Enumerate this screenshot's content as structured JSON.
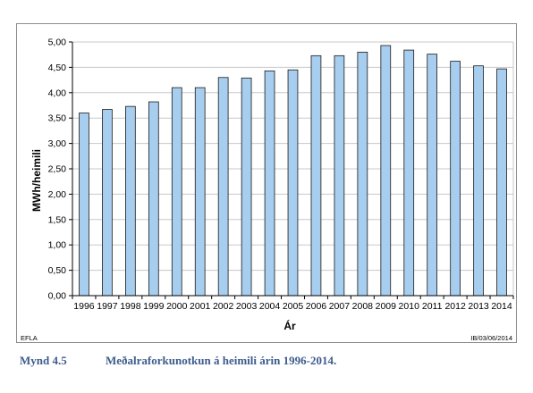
{
  "chart_data": {
    "type": "bar",
    "categories": [
      "1996",
      "1997",
      "1998",
      "1999",
      "2000",
      "2001",
      "2002",
      "2003",
      "2004",
      "2005",
      "2006",
      "2007",
      "2008",
      "2009",
      "2010",
      "2011",
      "2012",
      "2013",
      "2014"
    ],
    "values": [
      3.6,
      3.67,
      3.73,
      3.82,
      4.1,
      4.1,
      4.3,
      4.29,
      4.43,
      4.45,
      4.73,
      4.73,
      4.8,
      4.93,
      4.84,
      4.76,
      4.62,
      4.53,
      4.47
    ],
    "xlabel": "Ár",
    "ylabel": "MWh/heimili",
    "ylim": [
      0,
      5
    ],
    "yticks": [
      "0,00",
      "0,50",
      "1,00",
      "1,50",
      "2,00",
      "2,50",
      "3,00",
      "3,50",
      "4,00",
      "4,50",
      "5,00"
    ],
    "grid": true,
    "colors": {
      "bar_fill": "#a7cdef",
      "bar_stroke": "#1a1a1a",
      "grid": "#c8c8c8"
    }
  },
  "footer": {
    "left": "EFLA",
    "right": "IB/03/06/2014"
  },
  "caption": {
    "number": "Mynd 4.5",
    "text": "Meðalraforkunotkun á heimili árin 1996-2014."
  }
}
